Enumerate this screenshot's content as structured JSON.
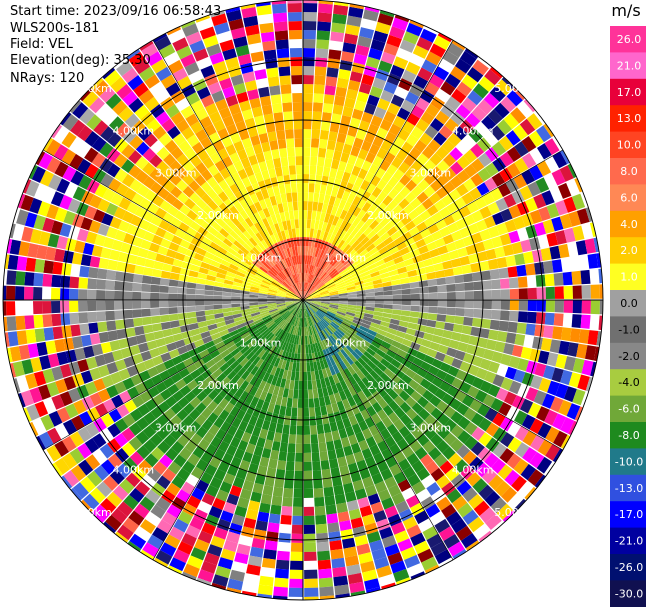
{
  "header": {
    "start_time": "Start time: 2023/09/16 06:58:43",
    "instrument": "WLS200s-181",
    "field": "Field: VEL",
    "elevation": "Elevation(deg): 35.30",
    "nrays": "NRays: 120"
  },
  "chart_data": {
    "type": "heatmap",
    "projection": "polar-ppi",
    "rays": 120,
    "range_rings_km": [
      1.0,
      2.0,
      3.0,
      4.0,
      5.0
    ],
    "range_ring_labels": [
      "1.00km",
      "2.00km",
      "3.00km",
      "4.00km",
      "5.00km"
    ],
    "valid_signal_range_km": 3.6,
    "field_description": "Radial velocity: positive (yellow/orange) toward north, negative (green) toward south, near-zero (gray) east-west; noisy random colors beyond about 3.6 km",
    "colorbar": {
      "unit": "m/s",
      "tick_labels": [
        "26.0",
        "21.0",
        "17.0",
        "13.0",
        "10.0",
        "8.0",
        "6.0",
        "4.0",
        "2.0",
        "1.0",
        "0.0",
        "-1.0",
        "-2.0",
        "-4.0",
        "-6.0",
        "-8.0",
        "-10.0",
        "-13.0",
        "-17.0",
        "-21.0",
        "-26.0",
        "-30.0"
      ],
      "colors": [
        "#ff3399",
        "#ff66cc",
        "#e8003a",
        "#ff2200",
        "#ff4422",
        "#ff6a4d",
        "#ff8855",
        "#ffa000",
        "#ffcc00",
        "#ffff22",
        "#a0a0a0",
        "#707070",
        "#888888",
        "#a8cc40",
        "#70a838",
        "#1e8a1e",
        "#207a8a",
        "#3050e0",
        "#0000ff",
        "#0000a0",
        "#001070",
        "#101050"
      ]
    }
  }
}
